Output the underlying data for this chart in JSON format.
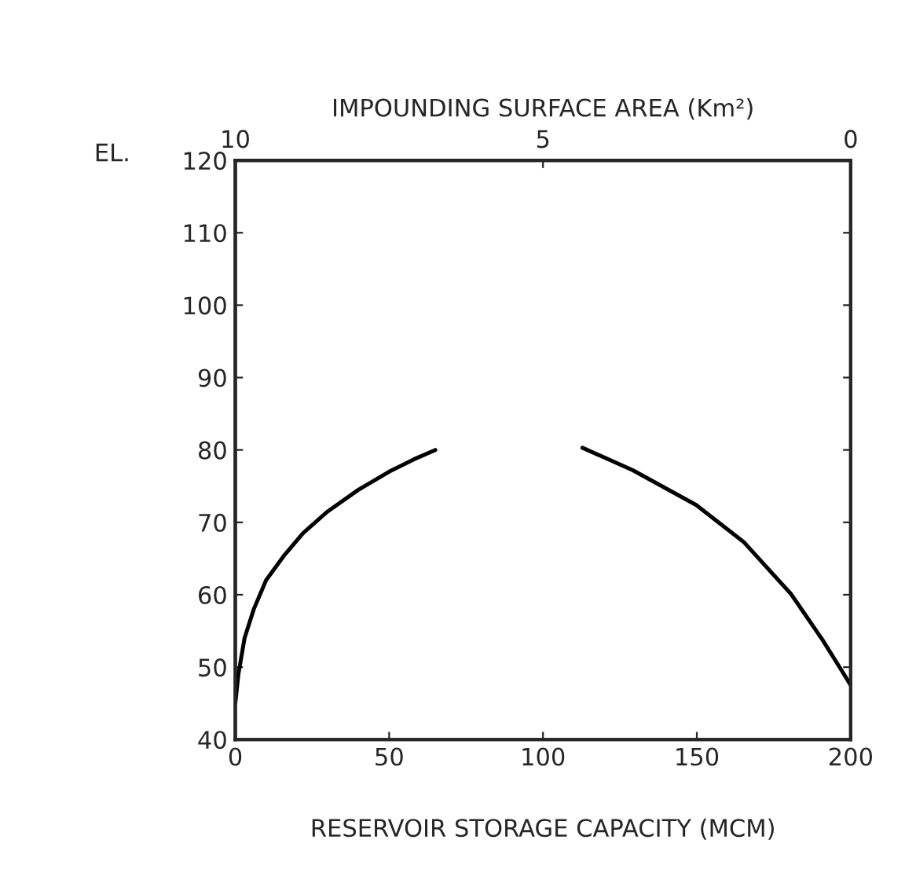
{
  "chart_data": {
    "type": "line",
    "xlabel": "RESERVOIR STORAGE CAPACITY (MCM)",
    "ylabel": "EL.",
    "x2label": "IMPOUNDING SURFACE AREA (Km²)",
    "xlim": [
      0,
      200
    ],
    "xticks": [
      0,
      50,
      100,
      150,
      200
    ],
    "x2lim": [
      10,
      0
    ],
    "x2ticks": [
      10,
      5,
      0
    ],
    "ylim": [
      40,
      120
    ],
    "yticks": [
      40,
      50,
      60,
      70,
      80,
      90,
      100,
      110,
      120
    ],
    "grid": false,
    "marker": "none",
    "line_style": "solid",
    "series": [
      {
        "color": "#000000",
        "x": [
          0,
          1,
          3,
          6,
          10,
          16,
          22,
          30,
          40,
          50,
          58,
          65
        ],
        "values": [
          45,
          49,
          54,
          58,
          62,
          65.5,
          68.5,
          71.5,
          74.5,
          77,
          78.7,
          80
        ]
      },
      {
        "color": "#000000",
        "axis": "x2",
        "x": [
          4.36,
          3.54,
          2.51,
          1.74,
          0.97,
          0.46,
          0.13,
          0
        ],
        "values": [
          80.3,
          77.2,
          72.4,
          67.3,
          60.1,
          53.8,
          49.3,
          47.5
        ]
      }
    ]
  }
}
